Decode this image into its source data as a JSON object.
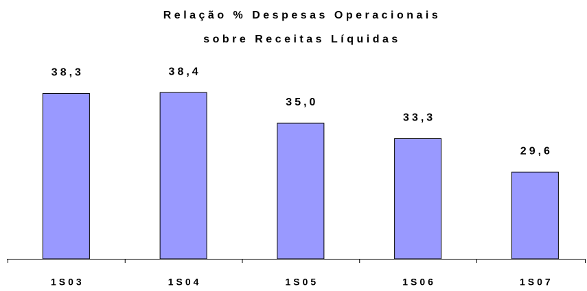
{
  "chart_data": {
    "type": "bar",
    "title": [
      "Relação % Despesas Operacionais",
      "sobre Receitas Líquidas"
    ],
    "categories": [
      "1S03",
      "1S04",
      "1S05",
      "1S06",
      "1S07"
    ],
    "values": [
      38.3,
      38.4,
      35.0,
      33.3,
      29.6
    ],
    "value_labels": [
      "38,3",
      "38,4",
      "35,0",
      "33,3",
      "29,6"
    ],
    "color": "#9999ff",
    "ylim": [
      20,
      40
    ]
  }
}
